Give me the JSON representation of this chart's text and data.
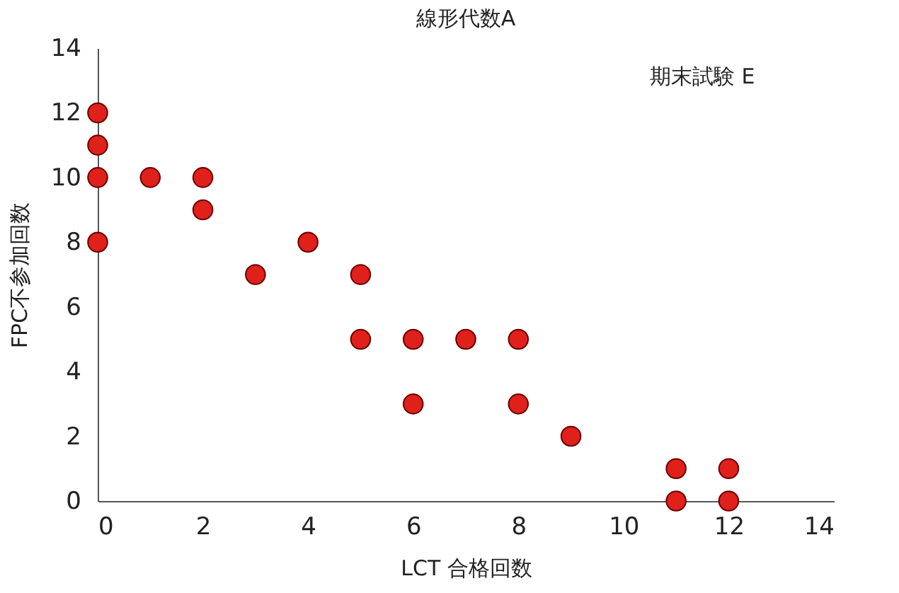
{
  "chart_data": {
    "type": "scatter",
    "title": "線形代数A",
    "xlabel": "LCT 合格回数",
    "ylabel": "FPC不参加回数",
    "annotations": [
      "期末試験 E"
    ],
    "x": [
      0,
      0,
      0,
      0,
      1,
      2,
      2,
      3,
      4,
      5,
      5,
      6,
      6,
      7,
      8,
      8,
      9,
      11,
      11,
      12,
      12
    ],
    "series": [
      {
        "color": "#e0201b",
        "values": [
          12,
          11,
          10,
          8,
          10,
          10,
          9,
          7,
          8,
          7,
          5,
          5,
          3,
          5,
          5,
          3,
          2,
          1,
          0,
          1,
          0
        ]
      }
    ],
    "xlim": [
      0,
      14
    ],
    "xticks": [
      0,
      2,
      4,
      6,
      8,
      10,
      12,
      14
    ],
    "ylim": [
      0,
      14
    ],
    "yticks": [
      0,
      2,
      4,
      6,
      8,
      10,
      12,
      14
    ],
    "marker": "circle",
    "grid": false,
    "legend": false
  }
}
